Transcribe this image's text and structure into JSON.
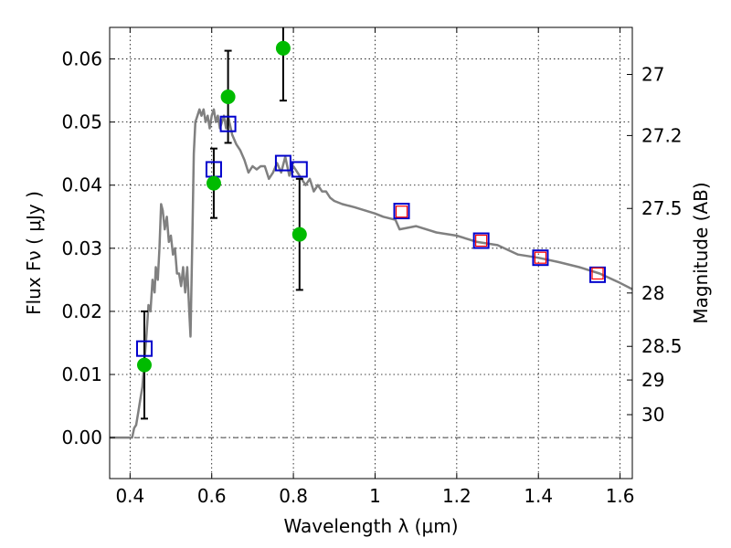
{
  "chart_data": {
    "type": "scatter",
    "title": "",
    "xlabel": "Wavelength  λ (μm)",
    "ylabel": "Flux  Fν  ( μJy )",
    "ylabel_right": "Magnitude (AB)",
    "xlim": [
      0.35,
      1.63
    ],
    "ylim": [
      -0.0065,
      0.065
    ],
    "grid": true,
    "x_ticks": [
      0.4,
      0.6,
      0.8,
      1.0,
      1.2,
      1.4,
      1.6
    ],
    "x_tick_labels": [
      "0.4",
      "0.6",
      "0.8",
      "1",
      "1.2",
      "1.4",
      "1.6"
    ],
    "y_ticks": [
      0.0,
      0.01,
      0.02,
      0.03,
      0.04,
      0.05,
      0.06
    ],
    "y_tick_labels": [
      "0.00",
      "0.01",
      "0.02",
      "0.03",
      "0.04",
      "0.05",
      "0.06"
    ],
    "mag_ticks": [
      27,
      27.2,
      27.5,
      28,
      28.5,
      29,
      30
    ],
    "mag_tick_labels": [
      "27",
      "27.2",
      "27.5",
      "28",
      "28.5",
      "29",
      "30"
    ],
    "colors": {
      "model": "#808080",
      "observed": "#00bb00",
      "errorbar": "#000000",
      "model_box": "#0000cc",
      "inner_box": "#ff0000"
    },
    "series": [
      {
        "type": "line",
        "x": [
          0.35,
          0.405,
          0.41,
          0.415,
          0.42,
          0.425,
          0.43,
          0.435,
          0.44,
          0.445,
          0.45,
          0.455,
          0.46,
          0.463,
          0.468,
          0.472,
          0.476,
          0.48,
          0.485,
          0.49,
          0.495,
          0.5,
          0.505,
          0.51,
          0.515,
          0.52,
          0.525,
          0.53,
          0.535,
          0.54,
          0.545,
          0.548,
          0.552,
          0.556,
          0.56,
          0.565,
          0.57,
          0.575,
          0.58,
          0.585,
          0.59,
          0.595,
          0.6,
          0.605,
          0.61,
          0.615,
          0.62,
          0.625,
          0.63,
          0.635,
          0.64,
          0.645,
          0.65,
          0.66,
          0.67,
          0.68,
          0.69,
          0.7,
          0.71,
          0.72,
          0.73,
          0.74,
          0.75,
          0.76,
          0.77,
          0.78,
          0.79,
          0.8,
          0.81,
          0.82,
          0.83,
          0.84,
          0.85,
          0.86,
          0.87,
          0.88,
          0.89,
          0.9,
          0.92,
          0.95,
          1.0,
          1.02,
          1.05,
          1.06,
          1.1,
          1.15,
          1.2,
          1.25,
          1.3,
          1.35,
          1.4,
          1.45,
          1.5,
          1.55,
          1.6,
          1.63
        ],
        "y": [
          0.0,
          0.0,
          0.0015,
          0.002,
          0.004,
          0.006,
          0.008,
          0.012,
          0.016,
          0.021,
          0.02,
          0.025,
          0.023,
          0.027,
          0.025,
          0.03,
          0.037,
          0.036,
          0.033,
          0.035,
          0.031,
          0.032,
          0.029,
          0.03,
          0.026,
          0.026,
          0.024,
          0.027,
          0.023,
          0.027,
          0.02,
          0.016,
          0.03,
          0.045,
          0.05,
          0.051,
          0.052,
          0.051,
          0.052,
          0.05,
          0.051,
          0.049,
          0.051,
          0.052,
          0.05,
          0.051,
          0.049,
          0.05,
          0.051,
          0.049,
          0.051,
          0.0495,
          0.048,
          0.0465,
          0.0455,
          0.044,
          0.042,
          0.043,
          0.0425,
          0.043,
          0.043,
          0.041,
          0.042,
          0.0435,
          0.042,
          0.0445,
          0.0415,
          0.043,
          0.042,
          0.041,
          0.04,
          0.041,
          0.039,
          0.04,
          0.039,
          0.039,
          0.038,
          0.0375,
          0.037,
          0.0365,
          0.0355,
          0.035,
          0.0345,
          0.033,
          0.0335,
          0.0325,
          0.032,
          0.031,
          0.0305,
          0.029,
          0.0285,
          0.0278,
          0.027,
          0.026,
          0.0245,
          0.0235
        ]
      },
      {
        "type": "scatter",
        "marker": "circle",
        "x": [
          0.435,
          0.605,
          0.64,
          0.775,
          0.815
        ],
        "y": [
          0.0115,
          0.0403,
          0.054,
          0.0617,
          0.0322
        ],
        "yerr": [
          0.0085,
          0.0055,
          0.0073,
          0.0083,
          0.0088
        ]
      },
      {
        "type": "scatter",
        "marker": "square",
        "x": [
          0.435,
          0.605,
          0.64,
          0.775,
          0.815,
          1.065,
          1.26,
          1.405,
          1.545
        ],
        "y": [
          0.0141,
          0.0425,
          0.0497,
          0.0435,
          0.0425,
          0.0359,
          0.0312,
          0.0285,
          0.0258
        ]
      },
      {
        "type": "scatter",
        "marker": "inner-square",
        "x": [
          1.065,
          1.26,
          1.405,
          1.545
        ],
        "y": [
          0.0358,
          0.0312,
          0.0285,
          0.026
        ]
      }
    ]
  }
}
